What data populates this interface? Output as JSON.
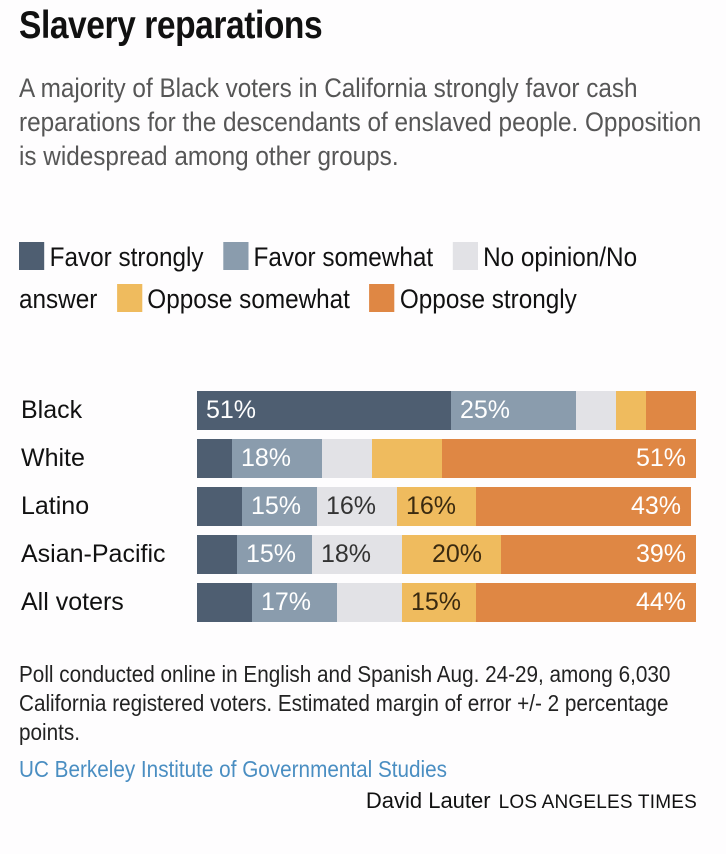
{
  "title": "Slavery reparations",
  "subtitle": "A majority of Black voters in California strongly favor cash reparations for the descendants of enslaved people. Opposition is widespread among other groups.",
  "legend": [
    {
      "label": "Favor strongly",
      "color": "#4e5e71"
    },
    {
      "label": "Favor somewhat",
      "color": "#8a9cad"
    },
    {
      "label": "No opinion/No answer",
      "color": "#e2e2e6"
    },
    {
      "label": "Oppose somewhat",
      "color": "#efbb5e"
    },
    {
      "label": "Oppose strongly",
      "color": "#df8744"
    }
  ],
  "chart_data": {
    "type": "bar",
    "orientation": "horizontal",
    "stacked": true,
    "title": "Slavery reparations",
    "xlabel": "",
    "ylabel": "",
    "xlim": [
      0,
      100
    ],
    "categories": [
      "Black",
      "White",
      "Latino",
      "Asian-Pacific",
      "All voters"
    ],
    "series": [
      {
        "name": "Favor strongly",
        "color": "#4e5e71",
        "values": [
          51,
          7,
          9,
          8,
          11
        ],
        "labels": [
          "51%",
          "",
          "",
          "",
          ""
        ]
      },
      {
        "name": "Favor somewhat",
        "color": "#8a9cad",
        "values": [
          25,
          18,
          15,
          15,
          17
        ],
        "labels": [
          "25%",
          "18%",
          "15%",
          "15%",
          "17%"
        ]
      },
      {
        "name": "No opinion/No answer",
        "color": "#e2e2e6",
        "values": [
          8,
          10,
          16,
          18,
          13
        ],
        "labels": [
          "",
          "",
          "16%",
          "18%",
          ""
        ]
      },
      {
        "name": "Oppose somewhat",
        "color": "#efbb5e",
        "values": [
          6,
          14,
          16,
          20,
          15
        ],
        "labels": [
          "",
          "",
          "16%",
          "20%",
          "15%"
        ]
      },
      {
        "name": "Oppose strongly",
        "color": "#df8744",
        "values": [
          10,
          51,
          43,
          39,
          44
        ],
        "labels": [
          "",
          "51%",
          "43%",
          "39%",
          "44%"
        ]
      }
    ],
    "legend_position": "top",
    "grid": false
  },
  "note": "Poll conducted online in English and Spanish Aug. 24-29, among 6,030 California registered voters. Estimated margin of error +/- 2 percentage points.",
  "source": "UC Berkeley Institute of Governmental Studies",
  "credit": {
    "author": "David Lauter",
    "org": "LOS ANGELES TIMES"
  }
}
